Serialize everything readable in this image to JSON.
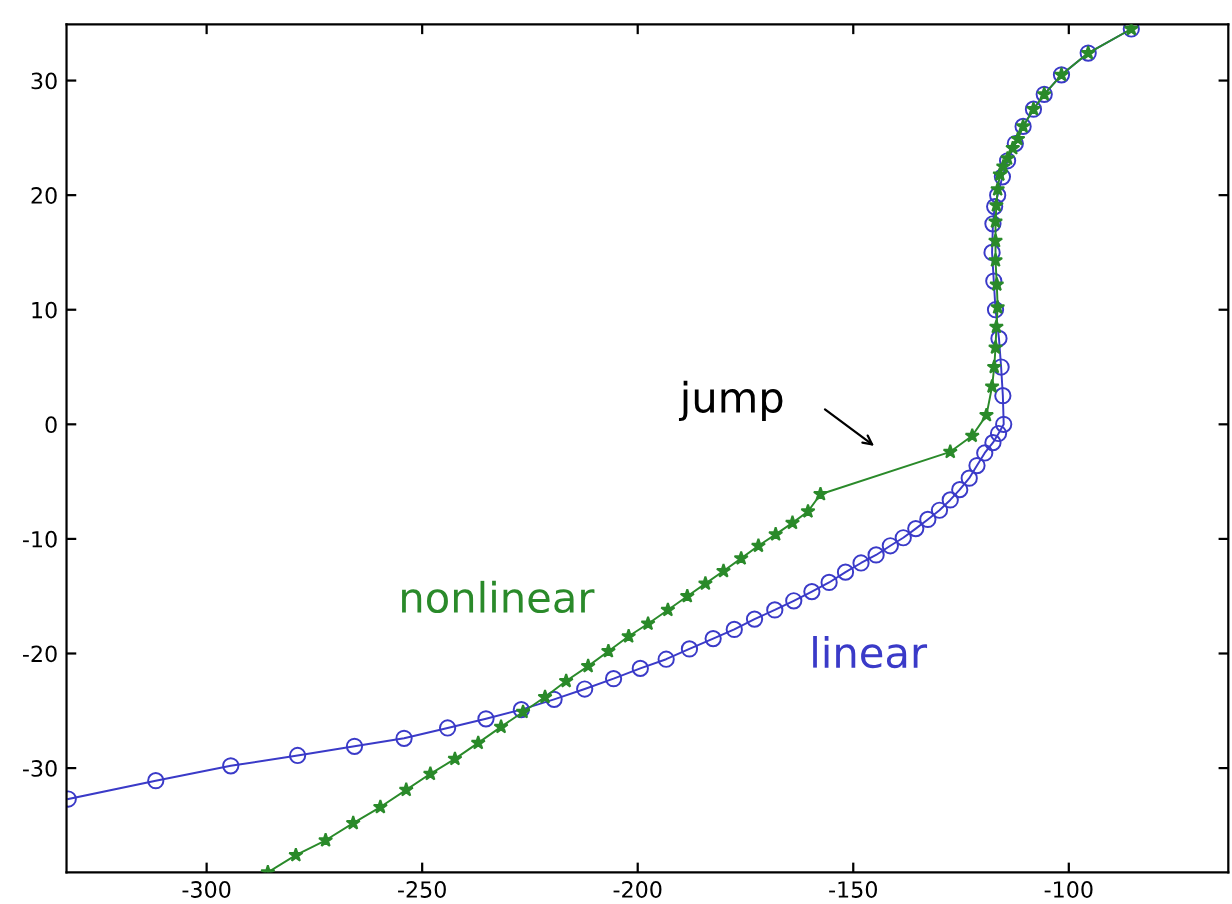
{
  "chart_data": {
    "type": "line",
    "xlim": [
      -332.5,
      -63
    ],
    "ylim": [
      -39.1,
      34.9
    ],
    "xticks": [
      -300,
      -250,
      -200,
      -150,
      -100
    ],
    "yticks": [
      -30,
      -20,
      -10,
      0,
      10,
      20,
      30
    ],
    "grid": false,
    "legend": false,
    "annotations": [
      "jump"
    ],
    "series": [
      {
        "name": "nonlinear",
        "color": "#2a8a2a",
        "marker": "star",
        "x": [
          -285.8,
          -279.3,
          -272.4,
          -266,
          -259.7,
          -253.7,
          -248.1,
          -242.4,
          -237,
          -231.7,
          -226.6,
          -221.5,
          -216.6,
          -211.5,
          -206.8,
          -202.1,
          -197.6,
          -193,
          -188.5,
          -184.3,
          -180.1,
          -176,
          -172,
          -168,
          -164.1,
          -160.5,
          -157.6,
          -127.5,
          -122.4,
          -119.1,
          -117.8,
          -117.3,
          -117,
          -116.8,
          -116.5,
          -116.7,
          -117,
          -117,
          -117,
          -116.8,
          -116.5,
          -116,
          -115.2,
          -114.2,
          -113,
          -111.8,
          -110.6,
          -108.2,
          -105.7,
          -101.7,
          -95.5,
          -85.5
        ],
        "values": [
          -39.1,
          -37.6,
          -36.3,
          -34.8,
          -33.4,
          -31.9,
          -30.5,
          -29.2,
          -27.8,
          -26.4,
          -25.1,
          -23.8,
          -22.4,
          -21.1,
          -19.8,
          -18.5,
          -17.4,
          -16.2,
          -15,
          -13.9,
          -12.8,
          -11.7,
          -10.6,
          -9.6,
          -8.6,
          -7.6,
          -6.1,
          -2.4,
          -1.0,
          0.8,
          3.3,
          5,
          6.7,
          8.5,
          10.2,
          12.2,
          14.3,
          16,
          17.7,
          19.1,
          20.5,
          21.8,
          22.5,
          23.2,
          24.1,
          24.9,
          26,
          27.5,
          28.8,
          30.5,
          32.4,
          34.5
        ]
      },
      {
        "name": "linear",
        "color": "#3a3ac8",
        "marker": "circle",
        "x": [
          -332.1,
          -311.8,
          -294.4,
          -278.9,
          -265.7,
          -254.2,
          -244.1,
          -235.2,
          -227,
          -219.4,
          -212.3,
          -205.6,
          -199.4,
          -193.4,
          -188,
          -182.5,
          -177.6,
          -172.9,
          -168.2,
          -163.8,
          -159.6,
          -155.6,
          -151.8,
          -148.2,
          -144.7,
          -141.4,
          -138.4,
          -135.5,
          -132.7,
          -130,
          -127.5,
          -125.3,
          -123.1,
          -121.3,
          -119.5,
          -117.6,
          -116.3,
          -115.1,
          -115.3,
          -115.7,
          -116.2,
          -117,
          -117.4,
          -117.8,
          -117.6,
          -117.2,
          -116.5,
          -115.4,
          -114.2,
          -112.4,
          -110.6,
          -108.2,
          -105.7,
          -101.7,
          -95.5,
          -85.5
        ],
        "values": [
          -32.7,
          -31.1,
          -29.8,
          -28.9,
          -28.1,
          -27.4,
          -26.5,
          -25.7,
          -24.9,
          -24,
          -23.1,
          -22.2,
          -21.3,
          -20.5,
          -19.6,
          -18.7,
          -17.9,
          -17,
          -16.2,
          -15.4,
          -14.6,
          -13.8,
          -12.9,
          -12.1,
          -11.4,
          -10.6,
          -9.9,
          -9.1,
          -8.3,
          -7.5,
          -6.6,
          -5.7,
          -4.7,
          -3.6,
          -2.5,
          -1.6,
          -0.8,
          0,
          2.5,
          5,
          7.5,
          10,
          12.5,
          15,
          17.5,
          19,
          20,
          21.6,
          23,
          24.5,
          26,
          27.5,
          28.8,
          30.5,
          32.4,
          34.5
        ]
      }
    ]
  }
}
